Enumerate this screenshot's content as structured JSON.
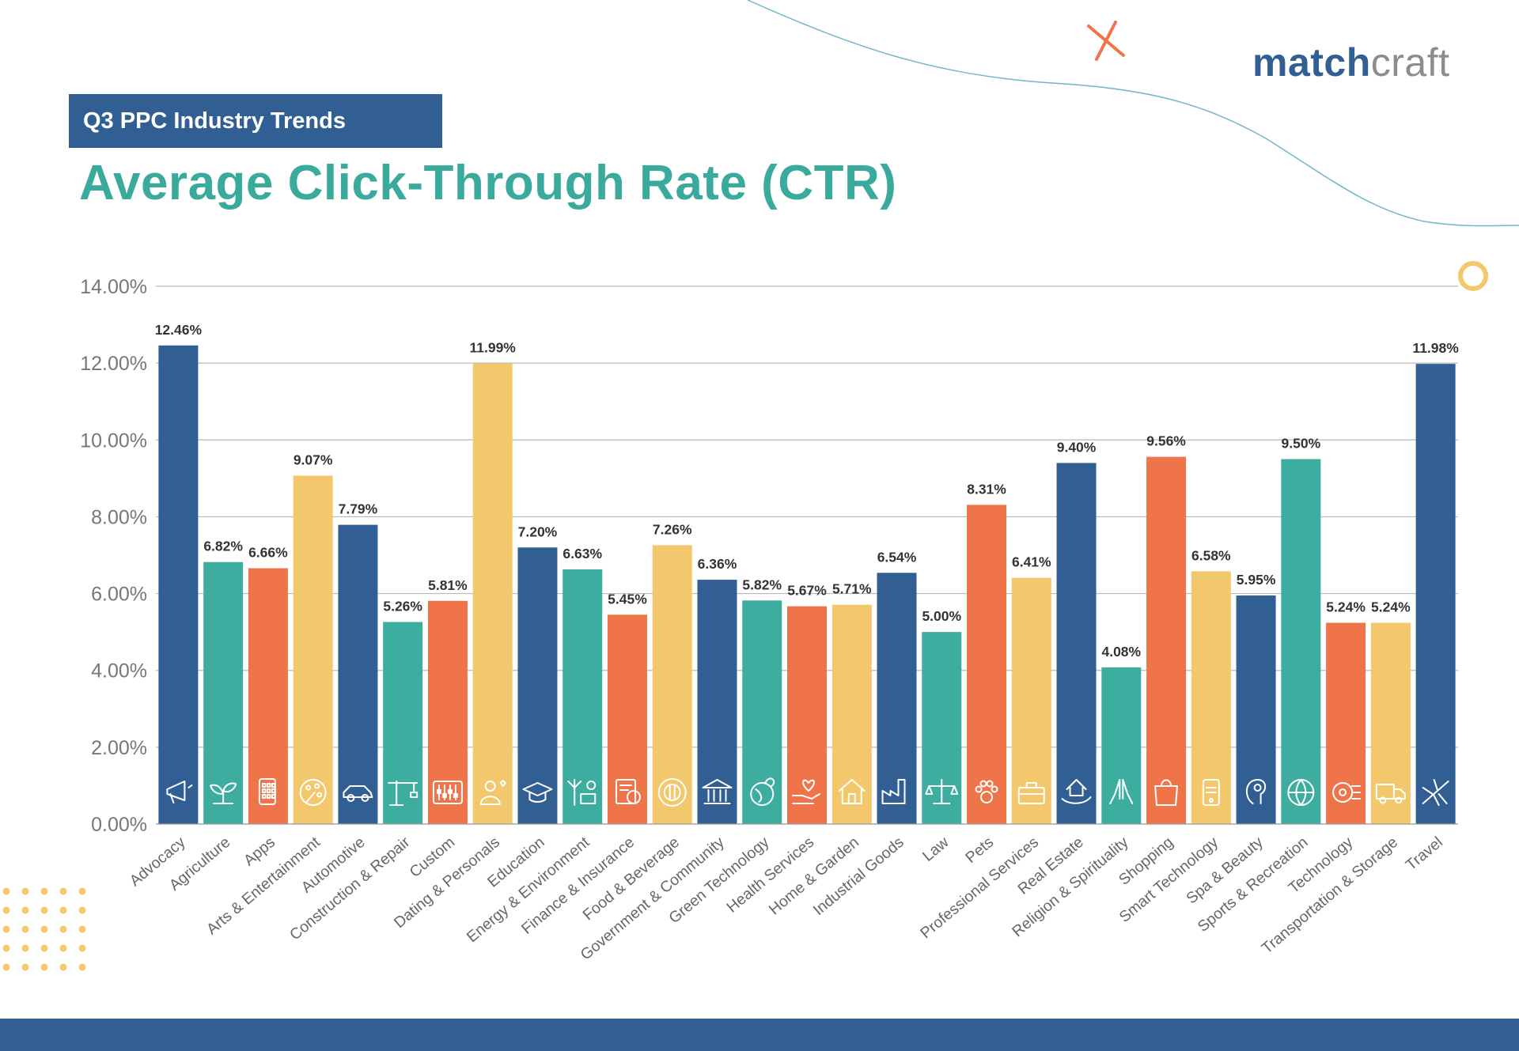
{
  "header": {
    "badge": "Q3 PPC Industry Trends",
    "title": "Average Click-Through Rate (CTR)",
    "logo_part1": "match",
    "logo_part2": "craft"
  },
  "colors": {
    "navy": "#315f94",
    "teal": "#3dada0",
    "orange": "#f0744a",
    "yellow": "#f3c76b"
  },
  "chart_data": {
    "type": "bar",
    "title": "Average Click-Through Rate (CTR)",
    "xlabel": "",
    "ylabel": "",
    "ylim": [
      0,
      14
    ],
    "yticks": [
      "0.00%",
      "2.00%",
      "4.00%",
      "6.00%",
      "8.00%",
      "10.00%",
      "12.00%",
      "14.00%"
    ],
    "grid": true,
    "categories": [
      "Advocacy",
      "Agriculture",
      "Apps",
      "Arts & Entertainment",
      "Automotive",
      "Construction & Repair",
      "Custom",
      "Dating & Personals",
      "Education",
      "Energy & Environment",
      "Finance & Insurance",
      "Food & Beverage",
      "Government & Community",
      "Green Technology",
      "Health Services",
      "Home & Garden",
      "Industrial Goods",
      "Law",
      "Pets",
      "Professional Services",
      "Real Estate",
      "Religion & Spirituality",
      "Shopping",
      "Smart Technology",
      "Spa & Beauty",
      "Sports & Recreation",
      "Technology",
      "Transportation & Storage",
      "Travel"
    ],
    "values": [
      12.46,
      6.82,
      6.66,
      9.07,
      7.79,
      5.26,
      5.81,
      11.99,
      7.2,
      6.63,
      5.45,
      7.26,
      6.36,
      5.82,
      5.67,
      5.71,
      6.54,
      5.0,
      8.31,
      6.41,
      9.4,
      4.08,
      9.56,
      6.58,
      5.95,
      9.5,
      5.24,
      5.24,
      11.98
    ],
    "labels": [
      "12.46%",
      "6.82%",
      "6.66%",
      "9.07%",
      "7.79%",
      "5.26%",
      "5.81%",
      "11.99%",
      "7.20%",
      "6.63%",
      "5.45%",
      "7.26%",
      "6.36%",
      "5.82%",
      "5.67%",
      "5.71%",
      "6.54%",
      "5.00%",
      "8.31%",
      "6.41%",
      "9.40%",
      "4.08%",
      "9.56%",
      "6.58%",
      "5.95%",
      "9.50%",
      "5.24%",
      "5.24%",
      "11.98%"
    ],
    "bar_colors": [
      "navy",
      "teal",
      "orange",
      "yellow",
      "navy",
      "teal",
      "orange",
      "yellow",
      "navy",
      "teal",
      "orange",
      "yellow",
      "navy",
      "teal",
      "orange",
      "yellow",
      "navy",
      "teal",
      "orange",
      "yellow",
      "navy",
      "teal",
      "orange",
      "yellow",
      "navy",
      "teal",
      "orange",
      "yellow",
      "navy"
    ],
    "icons": [
      "megaphone-icon",
      "sprout-icon",
      "phone-apps-icon",
      "palette-icon",
      "car-icon",
      "crane-icon",
      "sliders-icon",
      "heart-person-icon",
      "graduation-cap-icon",
      "solar-wind-icon",
      "finance-doc-icon",
      "plate-cutlery-icon",
      "government-building-icon",
      "green-globe-icon",
      "heart-hand-icon",
      "house-garden-icon",
      "factory-icon",
      "scales-icon",
      "paw-icon",
      "briefcase-icon",
      "house-hand-icon",
      "praying-hands-icon",
      "shopping-bag-icon",
      "smart-device-icon",
      "spa-face-icon",
      "ball-icon",
      "chip-icon",
      "truck-icon",
      "airplane-icon"
    ]
  }
}
